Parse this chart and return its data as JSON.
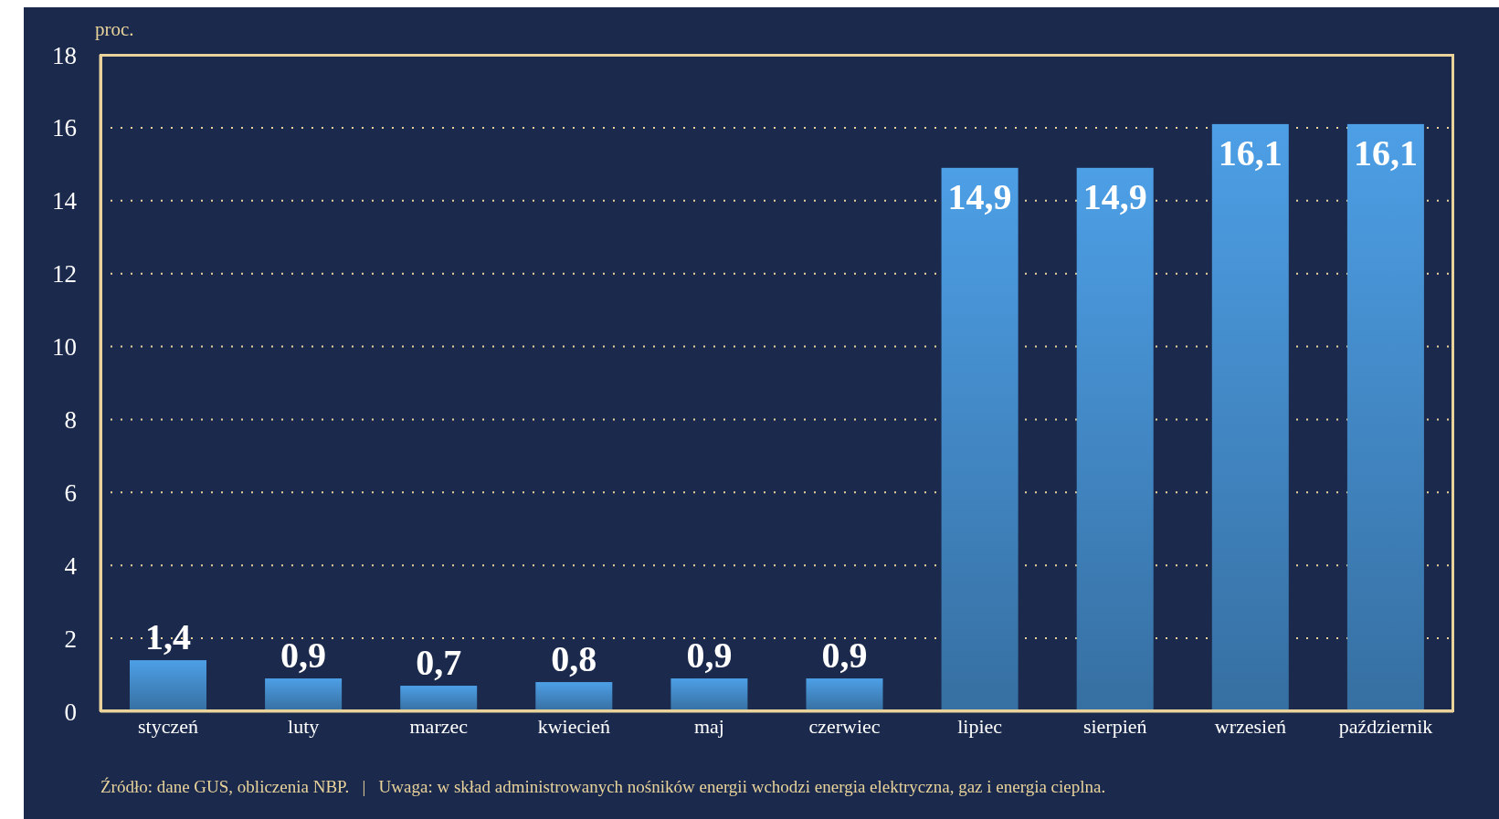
{
  "chart_data": {
    "type": "bar",
    "ylabel": "proc.",
    "categories": [
      "styczeń",
      "luty",
      "marzec",
      "kwiecień",
      "maj",
      "czerwiec",
      "lipiec",
      "sierpień",
      "wrzesień",
      "październik"
    ],
    "values": [
      1.4,
      0.9,
      0.7,
      0.8,
      0.9,
      0.9,
      14.9,
      14.9,
      16.1,
      16.1
    ],
    "color": "#4d9fe6",
    "value_labels": [
      "1,4",
      "0,9",
      "0,7",
      "0,8",
      "0,9",
      "0,9",
      "14,9",
      "14,9",
      "16,1",
      "16,1"
    ],
    "ylim": [
      0,
      18
    ],
    "yticks": [
      0,
      2,
      4,
      6,
      8,
      10,
      12,
      14,
      16,
      18
    ],
    "grid": "y",
    "legend": false,
    "annotations": [
      "Źródło: dane GUS, obliczenia NBP.   |   Uwaga: w skład administrowanych nośników energii wchodzi energia elektryczna, gaz i energia cieplna."
    ]
  }
}
